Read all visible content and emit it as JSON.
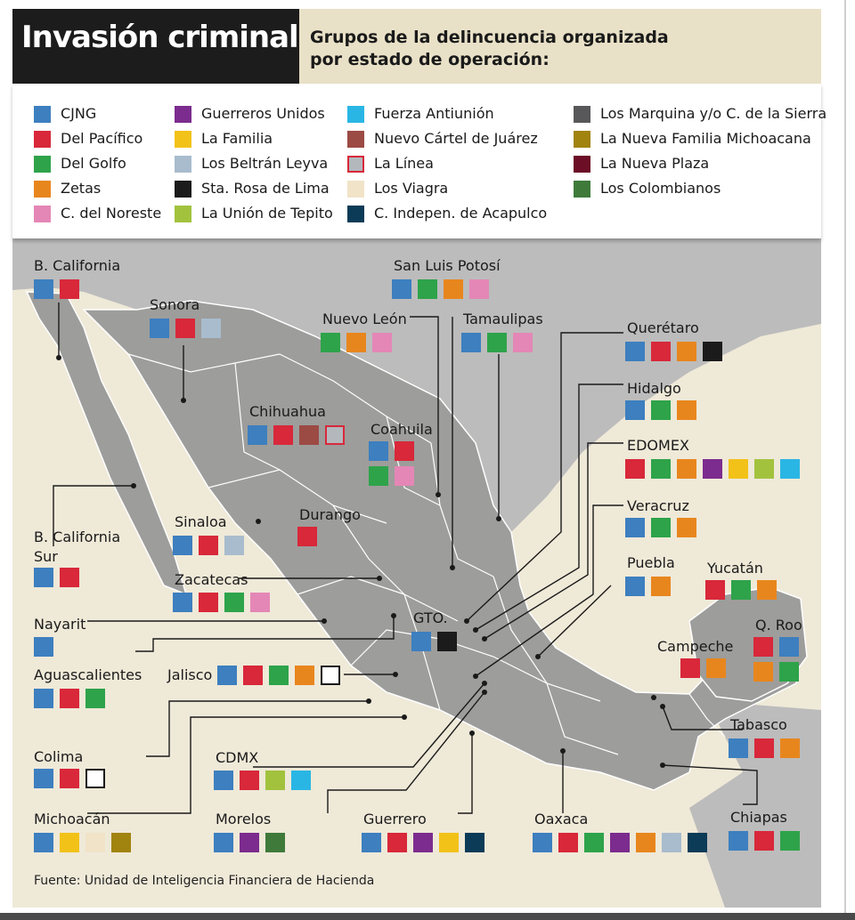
{
  "header": {
    "title": "Invasión criminal",
    "subtitle_line1": "Grupos de la delincuencia organizada",
    "subtitle_line2": "por estado de operación:"
  },
  "legend": [
    {
      "key": "cjng",
      "label": "CJNG",
      "color": "#3d7fbf"
    },
    {
      "key": "pacifico",
      "label": "Del Pacífico",
      "color": "#d8283a"
    },
    {
      "key": "golfo",
      "label": "Del Golfo",
      "color": "#2ea34a"
    },
    {
      "key": "zetas",
      "label": "Zetas",
      "color": "#e8861e"
    },
    {
      "key": "noreste",
      "label": "C. del Noreste",
      "color": "#e487b6"
    },
    {
      "key": "guerreros",
      "label": "Guerreros Unidos",
      "color": "#7c2c8e"
    },
    {
      "key": "familia",
      "label": "La Familia",
      "color": "#f2c219"
    },
    {
      "key": "beltran",
      "label": "Los Beltrán Leyva",
      "color": "#a8bccd"
    },
    {
      "key": "starosa",
      "label": "Sta. Rosa de Lima",
      "color": "#1b1b1b"
    },
    {
      "key": "tepito",
      "label": "La Unión de Tepito",
      "color": "#a2c23e"
    },
    {
      "key": "antiunion",
      "label": "Fuerza Antiunión",
      "color": "#2ab6e4"
    },
    {
      "key": "juarez",
      "label": "Nuevo Cártel de Juárez",
      "color": "#9c4a44"
    },
    {
      "key": "linea",
      "label": "La Línea",
      "color": "#b3b8bd",
      "border": "#d8283a"
    },
    {
      "key": "viagra",
      "label": "Los Viagra",
      "color": "#f1e3c8"
    },
    {
      "key": "acapulco",
      "label": "C. Indepen. de Acapulco",
      "color": "#0c3b57"
    },
    {
      "key": "marquina",
      "label": "Los Marquina y/o C. de la Sierra",
      "color": "#58585a"
    },
    {
      "key": "nuevafamilia",
      "label": "La Nueva Familia Michoacana",
      "color": "#a18310"
    },
    {
      "key": "nuevaplaza",
      "label": "La Nueva Plaza",
      "color": "#6b0e26"
    },
    {
      "key": "colombianos",
      "label": "Los Colombianos",
      "color": "#3f7a3b"
    }
  ],
  "states": [
    {
      "name": "B. California",
      "groups": [
        "cjng",
        "pacifico"
      ]
    },
    {
      "name": "Sonora",
      "groups": [
        "cjng",
        "pacifico",
        "beltran"
      ]
    },
    {
      "name": "Chihuahua",
      "groups": [
        "cjng",
        "pacifico",
        "juarez",
        "linea"
      ]
    },
    {
      "name": "Coahuila",
      "groups": [
        "cjng",
        "pacifico",
        "golfo",
        "noreste"
      ]
    },
    {
      "name": "Durango",
      "groups": [
        "pacifico"
      ]
    },
    {
      "name": "Sinaloa",
      "groups": [
        "cjng",
        "pacifico",
        "beltran"
      ]
    },
    {
      "name": "B. California Sur",
      "line1": "B. California",
      "line2": "Sur",
      "groups": [
        "cjng",
        "pacifico"
      ]
    },
    {
      "name": "Zacatecas",
      "groups": [
        "cjng",
        "pacifico",
        "golfo",
        "noreste"
      ]
    },
    {
      "name": "Nayarit",
      "groups": [
        "cjng"
      ]
    },
    {
      "name": "Aguascalientes",
      "groups": [
        "cjng",
        "pacifico",
        "golfo"
      ]
    },
    {
      "name": "Jalisco",
      "groups": [
        "cjng",
        "pacifico",
        "golfo",
        "zetas",
        "colima_white"
      ]
    },
    {
      "name": "Colima",
      "groups": [
        "cjng",
        "pacifico",
        "white"
      ]
    },
    {
      "name": "Michoacán",
      "groups": [
        "cjng",
        "familia",
        "viagra",
        "nuevafamilia"
      ]
    },
    {
      "name": "CDMX",
      "groups": [
        "cjng",
        "pacifico",
        "tepito",
        "antiunion"
      ]
    },
    {
      "name": "Morelos",
      "groups": [
        "cjng",
        "guerreros",
        "colombianos"
      ]
    },
    {
      "name": "Guerrero",
      "groups": [
        "cjng",
        "pacifico",
        "guerreros",
        "familia",
        "acapulco"
      ]
    },
    {
      "name": "Oaxaca",
      "groups": [
        "cjng",
        "pacifico",
        "golfo",
        "guerreros",
        "zetas",
        "beltran",
        "acapulco"
      ]
    },
    {
      "name": "San Luis Potosí",
      "groups": [
        "cjng",
        "golfo",
        "zetas",
        "noreste"
      ]
    },
    {
      "name": "Nuevo León",
      "groups": [
        "golfo",
        "zetas",
        "noreste"
      ]
    },
    {
      "name": "Tamaulipas",
      "groups": [
        "cjng",
        "golfo",
        "noreste"
      ]
    },
    {
      "name": "Querétaro",
      "groups": [
        "cjng",
        "pacifico",
        "zetas",
        "starosa"
      ]
    },
    {
      "name": "Hidalgo",
      "groups": [
        "cjng",
        "golfo",
        "zetas"
      ]
    },
    {
      "name": "EDOMEX",
      "groups": [
        "pacifico",
        "golfo",
        "zetas",
        "guerreros",
        "familia",
        "tepito",
        "antiunion"
      ]
    },
    {
      "name": "Veracruz",
      "groups": [
        "cjng",
        "golfo",
        "zetas"
      ]
    },
    {
      "name": "Puebla",
      "groups": [
        "cjng",
        "zetas"
      ]
    },
    {
      "name": "GTO.",
      "groups": [
        "cjng",
        "starosa"
      ]
    },
    {
      "name": "Yucatán",
      "groups": [
        "pacifico",
        "golfo",
        "zetas"
      ]
    },
    {
      "name": "Campeche",
      "groups": [
        "pacifico",
        "zetas"
      ]
    },
    {
      "name": "Q. Roo",
      "groups": [
        "pacifico",
        "cjng",
        "zetas",
        "golfo"
      ]
    },
    {
      "name": "Tabasco",
      "groups": [
        "cjng",
        "pacifico",
        "zetas"
      ]
    },
    {
      "name": "Chiapas",
      "groups": [
        "cjng",
        "pacifico",
        "golfo"
      ]
    }
  ],
  "source": "Fuente: Unidad de Inteligencia Financiera de Hacienda",
  "colors": {
    "land": "#9d9d9b",
    "water": "#efe9d8",
    "foreign": "#bcbcbc"
  }
}
